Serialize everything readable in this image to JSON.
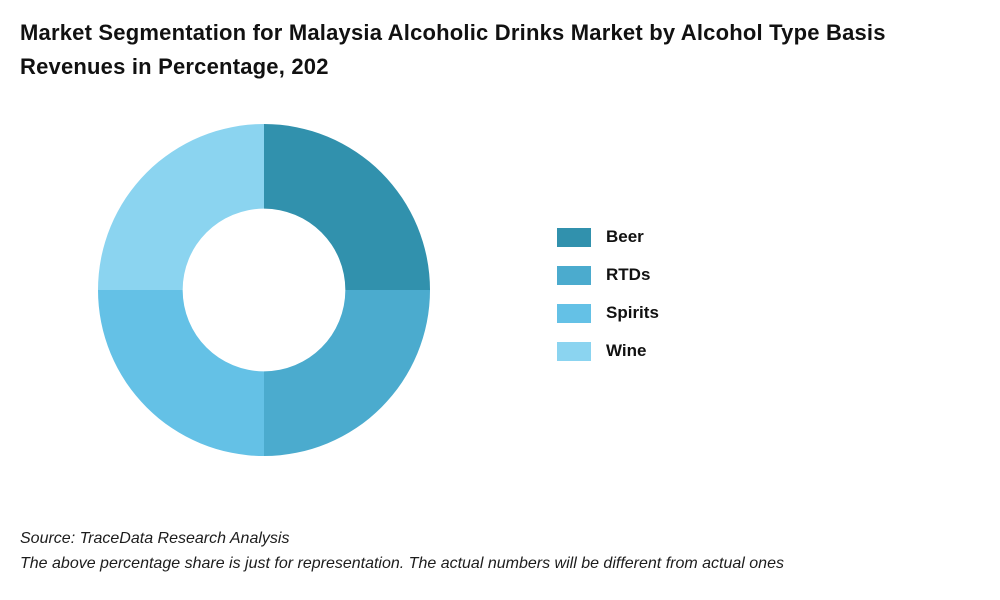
{
  "title": {
    "line1": "Market Segmentation for Malaysia Alcoholic Drinks Market by Alcohol Type Basis",
    "line2": "Revenues in Percentage, 202"
  },
  "chart_data": {
    "type": "pie",
    "subtype": "donut",
    "title": "Market Segmentation for Malaysia Alcoholic Drinks Market by Alcohol Type Basis Revenues in Percentage, 202",
    "categories": [
      "Beer",
      "RTDs",
      "Spirits",
      "Wine"
    ],
    "values": [
      25,
      25,
      25,
      25
    ],
    "colors": [
      "#3191ad",
      "#4babce",
      "#64c1e6",
      "#8bd4f0"
    ],
    "start_angle_deg": 0,
    "direction": "clockwise",
    "inner_radius_ratio": 0.49,
    "legend_position": "right",
    "data_labels": "none"
  },
  "footer": {
    "source_line": "Source: TraceData Research Analysis",
    "disclaimer_line": "The above percentage share is just for representation. The actual numbers will be different from actual ones"
  }
}
